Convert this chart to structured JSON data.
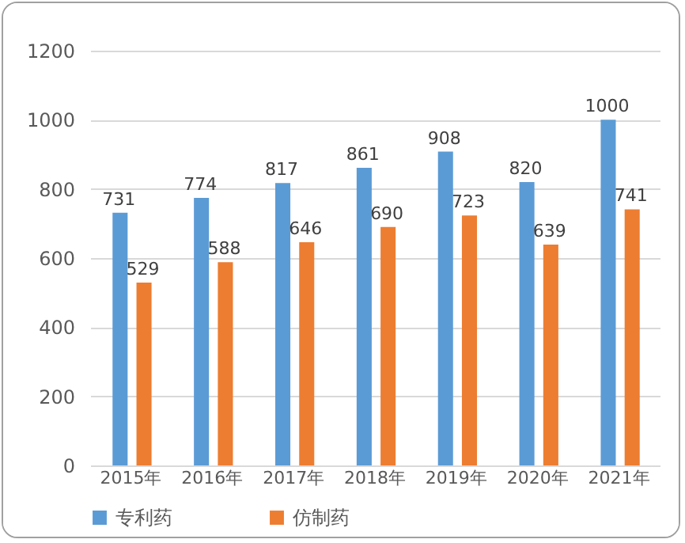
{
  "chart_data": {
    "type": "bar",
    "categories": [
      "2015年",
      "2016年",
      "2017年",
      "2018年",
      "2019年",
      "2020年",
      "2021年"
    ],
    "series": [
      {
        "name": "专利药",
        "color": "#5b9bd5",
        "values": [
          731,
          774,
          817,
          861,
          908,
          820,
          1000
        ]
      },
      {
        "name": "仿制药",
        "color": "#ed7d31",
        "values": [
          529,
          588,
          646,
          690,
          723,
          639,
          741
        ]
      }
    ],
    "ylim": [
      0,
      1200
    ],
    "yticks": [
      0,
      200,
      400,
      600,
      800,
      1000,
      1200
    ],
    "grid": "y",
    "legend": "bottom",
    "data_labels": true
  }
}
